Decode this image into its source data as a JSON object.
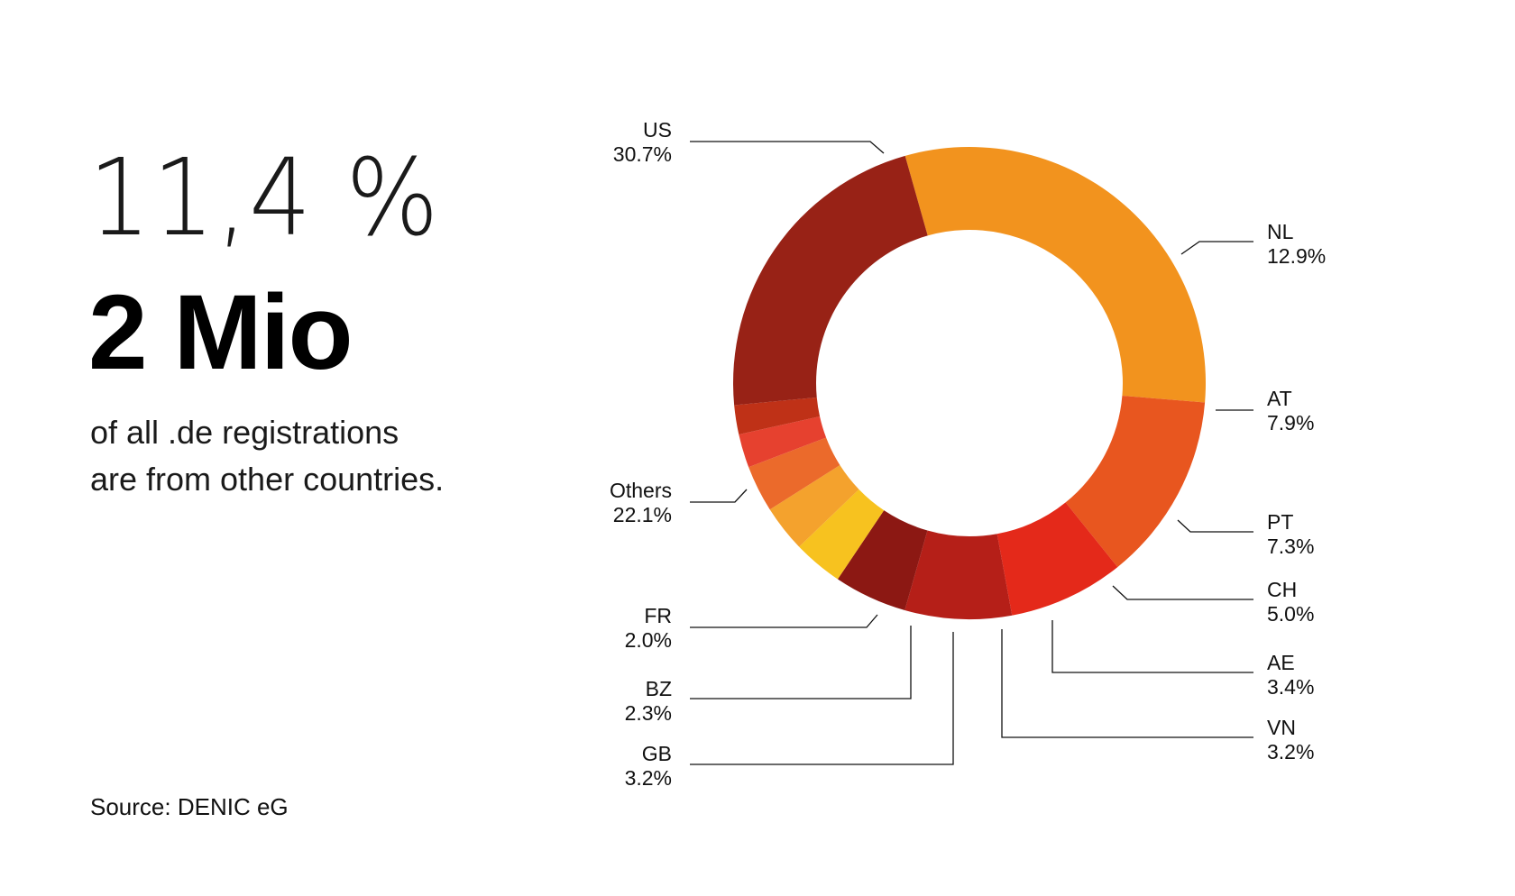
{
  "headline": {
    "percent": "11,4 %",
    "number": "2 Mio",
    "subtitle_line1": "of all .de registrations",
    "subtitle_line2": "are from other countries."
  },
  "source": "Source: DENIC eG",
  "chart_data": {
    "type": "pie",
    "variant": "donut",
    "slices": [
      {
        "label": "US",
        "value": 30.7,
        "value_label": "30.7%",
        "color": "#F2931E"
      },
      {
        "label": "NL",
        "value": 12.9,
        "value_label": "12.9%",
        "color": "#E8561F"
      },
      {
        "label": "AT",
        "value": 7.9,
        "value_label": "7.9%",
        "color": "#E4291A"
      },
      {
        "label": "PT",
        "value": 7.3,
        "value_label": "7.3%",
        "color": "#B51F18"
      },
      {
        "label": "CH",
        "value": 5.0,
        "value_label": "5.0%",
        "color": "#8C1813"
      },
      {
        "label": "AE",
        "value": 3.4,
        "value_label": "3.4%",
        "color": "#F7C21F"
      },
      {
        "label": "VN",
        "value": 3.2,
        "value_label": "3.2%",
        "color": "#F4A22D"
      },
      {
        "label": "GB",
        "value": 3.2,
        "value_label": "3.2%",
        "color": "#EB6A2B"
      },
      {
        "label": "BZ",
        "value": 2.3,
        "value_label": "2.3%",
        "color": "#E6412F"
      },
      {
        "label": "FR",
        "value": 2.0,
        "value_label": "2.0%",
        "color": "#BF3117"
      },
      {
        "label": "Others",
        "value": 22.1,
        "value_label": "22.1%",
        "color": "#982216"
      }
    ],
    "legend": "none (labels with leader lines)"
  }
}
